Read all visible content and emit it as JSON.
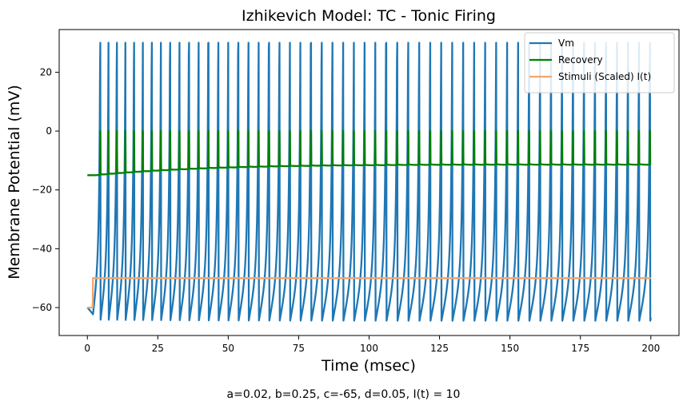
{
  "chart_data": {
    "type": "line",
    "title": "Izhikevich Model: TC - Tonic Firing",
    "xlabel": "Time (msec)",
    "ylabel": "Membrane Potential (mV)",
    "caption": "a=0.02, b=0.25, c=-65, d=0.05, I(t) = 10",
    "xlim": [
      -10,
      210
    ],
    "ylim": [
      -69.5,
      34.5
    ],
    "xticks": [
      0,
      25,
      50,
      75,
      100,
      125,
      150,
      175,
      200
    ],
    "yticks": [
      -60,
      -40,
      -20,
      0,
      20
    ],
    "grid": false,
    "legend_placement": "top-right",
    "model": {
      "a": 0.02,
      "b": 0.25,
      "c": -65,
      "d": 0.05,
      "I": 10,
      "v0": -60,
      "dt": 0.1,
      "t_end": 200,
      "stim_onset": 2,
      "spike_peak": 30
    },
    "series": [
      {
        "name": "Vm",
        "color": "#1f77b4",
        "description": "tonic spikes from about -64 mV to +30 mV, roughly every 3.5 ms"
      },
      {
        "name": "Recovery",
        "color": "#008000",
        "description": "starts near -15, rises slowly to about -11, with spikes to 0 at each firing"
      },
      {
        "name": "Stimuli (Scaled) I(t)",
        "color": "#f4a46c",
        "description": "-60 until t=2, then steps to -50"
      }
    ]
  }
}
